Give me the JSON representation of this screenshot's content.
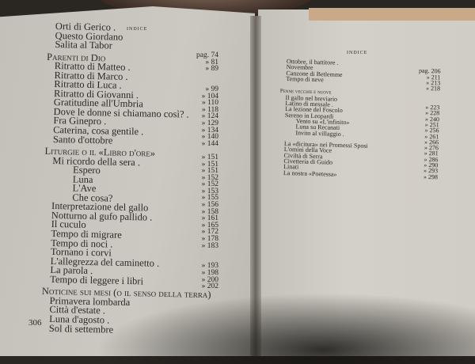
{
  "left_page": {
    "header": "Indice",
    "page_number": "306",
    "titles": [
      {
        "text": "Orti di Gerico .",
        "level": 1
      },
      {
        "text": "Questo Giordano",
        "level": 1
      },
      {
        "text": "Salita al Tabor",
        "level": 1
      },
      {
        "text": "Parenti di Dio",
        "level": 0
      },
      {
        "text": "Ritratto di Matteo .",
        "level": 1
      },
      {
        "text": "Ritratto di Marco .",
        "level": 1
      },
      {
        "text": "Ritratto di Luca .",
        "level": 1
      },
      {
        "text": "Ritratto di Giovanni .",
        "level": 1
      },
      {
        "text": "Gratitudine all'Umbria",
        "level": 1
      },
      {
        "text": "Dove le donne si chiamano così? .",
        "level": 1
      },
      {
        "text": "Fra Ginepro .",
        "level": 1
      },
      {
        "text": "Caterina, cosa gentile .",
        "level": 1
      },
      {
        "text": "Santo d'ottobre",
        "level": 1
      },
      {
        "text": "Liturgie o il «Libro d'ore»",
        "level": 0
      },
      {
        "text": "Mi ricordo della sera .",
        "level": 1
      },
      {
        "text": "Espero",
        "level": 2
      },
      {
        "text": "Luna",
        "level": 2
      },
      {
        "text": "L'Ave",
        "level": 2
      },
      {
        "text": "Che cosa?",
        "level": 2
      },
      {
        "text": "Interpretazione del gallo",
        "level": 1
      },
      {
        "text": "Notturno al gufo pallido .",
        "level": 1
      },
      {
        "text": "Il cuculo",
        "level": 1
      },
      {
        "text": "Tempo di migrare",
        "level": 1
      },
      {
        "text": "Tempo di noci .",
        "level": 1
      },
      {
        "text": "Tornano i corvi",
        "level": 1
      },
      {
        "text": "L'allegrezza del caminetto .",
        "level": 1
      },
      {
        "text": "La parola .",
        "level": 1
      },
      {
        "text": "Tempo di leggere i libri",
        "level": 1
      },
      {
        "text": "Noticine sui mesi (o il senso della terra)",
        "level": 0
      },
      {
        "text": "Primavera lombarda",
        "level": 1
      },
      {
        "text": "Città d'estate .",
        "level": 1
      },
      {
        "text": "Luna d'agosto .",
        "level": 1
      },
      {
        "text": "Sol di settembre",
        "level": 1
      }
    ],
    "page_refs": [
      "pag. 74",
      "» 81",
      "» 89",
      "",
      "",
      "» 99",
      "» 104",
      "» 110",
      "» 118",
      "» 124",
      "» 129",
      "» 134",
      "» 140",
      "» 144",
      "",
      "» 151",
      "» 151",
      "» 151",
      "» 152",
      "» 152",
      "» 153",
      "» 155",
      "» 156",
      "» 158",
      "» 161",
      "» 165",
      "» 172",
      "» 178",
      "» 183",
      "",
      "",
      "» 193",
      "» 198",
      "» 200",
      "» 202"
    ]
  },
  "right_page": {
    "header": "Indice",
    "rows": [
      {
        "text": "Ottobre, il battitore .",
        "page": "",
        "type": "entry"
      },
      {
        "text": "Novembre",
        "page": "pag. 206",
        "type": "entry"
      },
      {
        "text": "Canzone di Betlemme",
        "page": "» 211",
        "type": "entry"
      },
      {
        "text": "Tempo di neve",
        "page": "» 213",
        "type": "entry"
      },
      {
        "text": "",
        "page": "» 218",
        "type": "entry"
      },
      {
        "text": "Penne vecchie e nuove",
        "page": "",
        "type": "sec"
      },
      {
        "text": "Il gallo nel breviario",
        "page": "",
        "type": "entry"
      },
      {
        "text": "Latino di messale .",
        "page": "» 223",
        "type": "entry"
      },
      {
        "text": "La lezione del Foscolo",
        "page": "» 228",
        "type": "entry"
      },
      {
        "text": "Sereno in Leopardi",
        "page": "» 240",
        "type": "entry"
      },
      {
        "text": "Vento su «L'infinito»",
        "page": "» 251",
        "type": "sub"
      },
      {
        "text": "Luna su Recanati",
        "page": "» 256",
        "type": "sub"
      },
      {
        "text": "Invito al villaggio .",
        "page": "» 261",
        "type": "sub"
      },
      {
        "text": "",
        "page": "» 266",
        "type": "entry"
      },
      {
        "text": "La «dicitura» nei Promessi Sposi",
        "page": "» 276",
        "type": "entry"
      },
      {
        "text": "L'omini della Voce",
        "page": "» 281",
        "type": "entry"
      },
      {
        "text": "Civiltà di Serra",
        "page": "» 286",
        "type": "entry"
      },
      {
        "text": "Civetteria di Guido",
        "page": "» 290",
        "type": "entry"
      },
      {
        "text": "Linati",
        "page": "» 293",
        "type": "entry"
      },
      {
        "text": "La nostra «Poetessa»",
        "page": "» 298",
        "type": "entry"
      }
    ]
  }
}
